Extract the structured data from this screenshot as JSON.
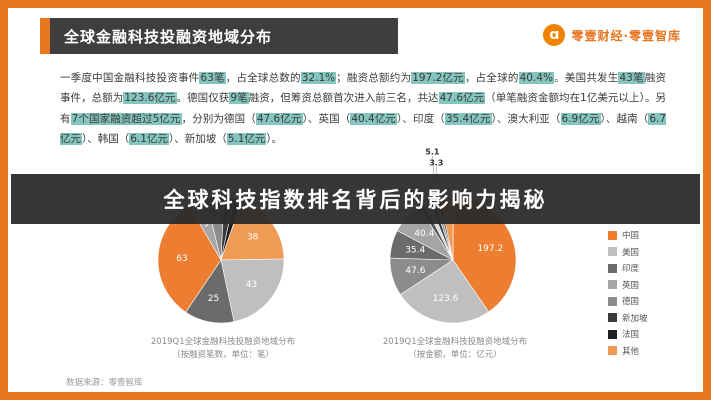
{
  "header": {
    "title": "全球金融科技投融资地域分布",
    "brand": "零壹财经·零壹智库",
    "logo_glyph": "ɑ"
  },
  "summary": {
    "segments": [
      {
        "t": "一季度中国金融科技投资事件",
        "h": false
      },
      {
        "t": "63笔",
        "h": true
      },
      {
        "t": "，占全球总数的",
        "h": false
      },
      {
        "t": "32.1%",
        "h": true
      },
      {
        "t": "；融资总额约为",
        "h": false
      },
      {
        "t": "197.2亿元",
        "h": true
      },
      {
        "t": "，占全球的",
        "h": false
      },
      {
        "t": "40.4%",
        "h": true
      },
      {
        "t": "。美国共发生",
        "h": false
      },
      {
        "t": "43笔",
        "h": true
      },
      {
        "t": "融资事件，总额为",
        "h": false
      },
      {
        "t": "123.6亿元",
        "h": true
      },
      {
        "t": "。德国仅获",
        "h": false
      },
      {
        "t": "9笔",
        "h": true
      },
      {
        "t": "融资，但筹资总额首次进入前三名，共达",
        "h": false
      },
      {
        "t": "47.6亿元",
        "h": true
      },
      {
        "t": "（单笔融资金额均在1亿美元以上）。另有",
        "h": false
      },
      {
        "t": "7个国家融资超过5亿元",
        "h": true
      },
      {
        "t": "，分别为德国（",
        "h": false
      },
      {
        "t": "47.6亿元",
        "h": true
      },
      {
        "t": "）、英国（",
        "h": false
      },
      {
        "t": "40.4亿元",
        "h": true
      },
      {
        "t": "）、印度（",
        "h": false
      },
      {
        "t": "35.4亿元",
        "h": true
      },
      {
        "t": "）、澳大利亚（",
        "h": false
      },
      {
        "t": "6.9亿元",
        "h": true
      },
      {
        "t": "）、越南（",
        "h": false
      },
      {
        "t": "6.7亿元",
        "h": true
      },
      {
        "t": "）、韩国（",
        "h": false
      },
      {
        "t": "6.1亿元",
        "h": true
      },
      {
        "t": "）、新加坡（",
        "h": false
      },
      {
        "t": "5.1亿元",
        "h": true
      },
      {
        "t": "）。",
        "h": false
      }
    ]
  },
  "overlay": {
    "title": "全球科技指数排名背后的影响力揭秘"
  },
  "legend": {
    "items": [
      {
        "label": "中国",
        "color": "#ED7D31"
      },
      {
        "label": "美国",
        "color": "#BFBFBF"
      },
      {
        "label": "印度",
        "color": "#6B6B6B"
      },
      {
        "label": "英国",
        "color": "#A5A5A5"
      },
      {
        "label": "德国",
        "color": "#8C8C8C"
      },
      {
        "label": "新加坡",
        "color": "#3B3B3B"
      },
      {
        "label": "法国",
        "color": "#1F1F1F"
      },
      {
        "label": "其他",
        "color": "#EF9B55"
      }
    ]
  },
  "footer": {
    "source": "数据来源：零壹智库"
  },
  "chart_data": [
    {
      "type": "pie",
      "title": "2019Q1全球金融科技投融资地域分布（按融资笔数，单位：笔）",
      "caption_line1": "2019Q1全球金融科技投融资地域分布",
      "caption_line2": "（按融资笔数，单位：笔）",
      "unit": "笔",
      "categories": [
        "中国",
        "英国",
        "德国",
        "新加坡",
        "法国",
        "其他",
        "美国",
        "印度"
      ],
      "values": [
        63,
        9,
        9,
        5,
        4,
        38,
        43,
        25
      ],
      "labels": [
        "63",
        "9",
        "9",
        "",
        "",
        "38",
        "43",
        "25"
      ],
      "colors": [
        "#ED7D31",
        "#A5A5A5",
        "#8C8C8C",
        "#3B3B3B",
        "#1F1F1F",
        "#EF9B55",
        "#BFBFBF",
        "#6B6B6B"
      ],
      "start_angle": 214,
      "legend_position": "right",
      "notes": "中国占全球笔数32.1%"
    },
    {
      "type": "pie",
      "title": "2019Q1全球金融科技投融资地域分布（按金额，单位：亿元）",
      "caption_line1": "2019Q1全球金融科技投融资地域分布",
      "caption_line2": "（按金额，单位：亿元）",
      "unit": "亿元",
      "categories": [
        "中国",
        "美国",
        "德国",
        "印度",
        "英国",
        "澳大利亚",
        "越南",
        "韩国",
        "新加坡",
        "法国",
        "其他"
      ],
      "values": [
        197.2,
        123.6,
        47.6,
        35.4,
        40.4,
        6.9,
        6.7,
        6.1,
        5.1,
        3.3,
        15.8
      ],
      "labels": [
        "197.2",
        "123.6",
        "47.6",
        "35.4",
        "40.4",
        "",
        "",
        "",
        "5.1",
        "3.3",
        ""
      ],
      "colors": [
        "#ED7D31",
        "#BFBFBF",
        "#8C8C8C",
        "#6B6B6B",
        "#A5A5A5",
        "#4F4F4F",
        "#D9D9D9",
        "#3B3B3B",
        "#9E9E9E",
        "#1F1F1F",
        "#EF9B55"
      ],
      "start_angle": 0,
      "legend_position": "right",
      "notes": "中国占全球金额40.4%"
    }
  ]
}
